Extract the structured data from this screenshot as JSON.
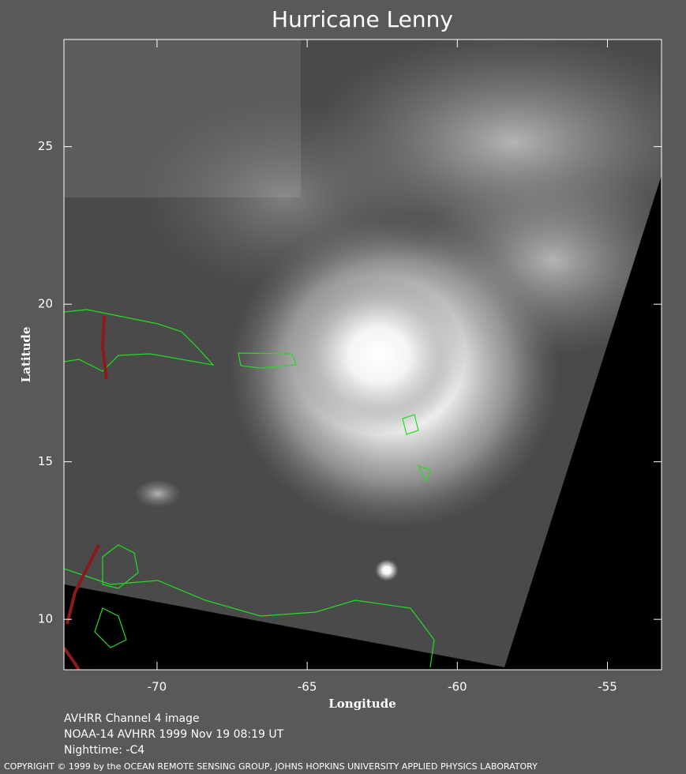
{
  "chart_data": {
    "type": "map",
    "title": "Hurricane Lenny",
    "xlabel": "Longitude",
    "ylabel": "Latitude",
    "xlim": [
      -73.1,
      -53.2
    ],
    "ylim": [
      8.4,
      28.4
    ],
    "xticks": [
      -70,
      -65,
      -60,
      -55
    ],
    "yticks": [
      10,
      15,
      20,
      25
    ],
    "captions": [
      "AVHRR Channel 4 image",
      "NOAA-14 AVHRR 1999 Nov 19 08:19 UT",
      "Nighttime: -C4"
    ],
    "copyright": "COPYRIGHT © 1999 by the OCEAN REMOTE SENSING GROUP, JOHNS HOPKINS UNIVERSITY APPLIED PHYSICS LABORATORY"
  }
}
